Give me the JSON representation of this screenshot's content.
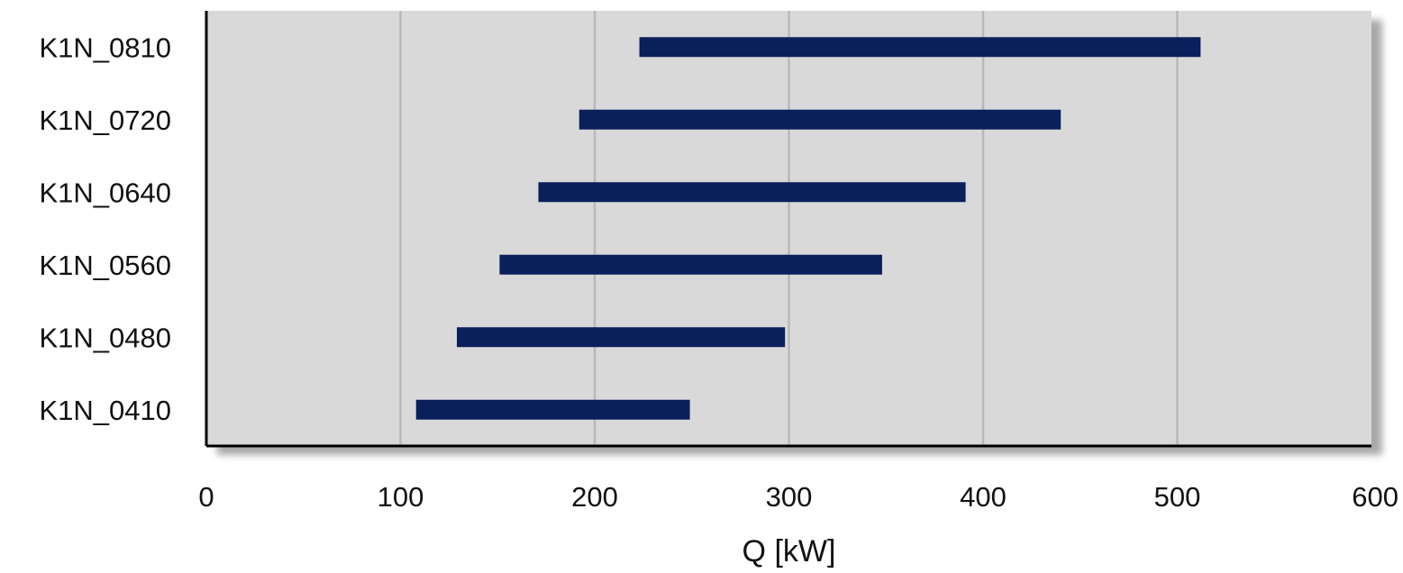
{
  "chart_data": {
    "type": "bar",
    "orientation": "horizontal",
    "subtype": "floating-range",
    "categories": [
      "K1N_0810",
      "K1N_0720",
      "K1N_0640",
      "K1N_0560",
      "K1N_0480",
      "K1N_0410"
    ],
    "series": [
      {
        "ranges": [
          [
            223,
            512
          ],
          [
            192,
            440
          ],
          [
            171,
            391
          ],
          [
            151,
            348
          ],
          [
            129,
            298
          ],
          [
            108,
            249
          ]
        ]
      }
    ],
    "xlim": [
      0,
      600
    ],
    "xticks": [
      0,
      100,
      200,
      300,
      400,
      500,
      600
    ],
    "xlabel": "Q [kW]",
    "ylabel": "",
    "title": "",
    "grid": "vertical",
    "legend": "none",
    "colors": {
      "bar": "#0b1f5c",
      "plot_background": "#d9d9d9",
      "gridline": "#b9b9b9",
      "axis": "#000000",
      "shadow": "#8c8c8c"
    }
  }
}
